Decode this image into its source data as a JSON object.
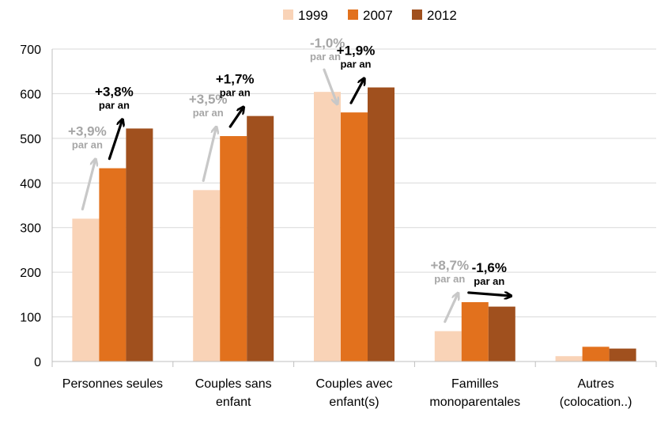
{
  "chart_data": {
    "type": "bar",
    "categories": [
      [
        "Personnes seules"
      ],
      [
        "Couples sans",
        "enfant"
      ],
      [
        "Couples avec",
        "enfant(s)"
      ],
      [
        "Familles",
        "monoparentales"
      ],
      [
        "Autres",
        "(colocation..)"
      ]
    ],
    "series": [
      {
        "name": "1999",
        "color": "#f9d3b7",
        "values": [
          320,
          384,
          604,
          68,
          12
        ]
      },
      {
        "name": "2007",
        "color": "#e2711d",
        "values": [
          433,
          505,
          558,
          133,
          33
        ]
      },
      {
        "name": "2012",
        "color": "#a0501e",
        "values": [
          522,
          550,
          614,
          123,
          29
        ]
      }
    ],
    "ylim": [
      0,
      700
    ],
    "yticks": [
      "0",
      "100",
      "200",
      "300",
      "400",
      "500",
      "600",
      "700"
    ],
    "grid": true,
    "legend_position": "top",
    "annotations": [
      {
        "category": 0,
        "period": "1999-2007",
        "rate": "+3,9%",
        "unit": "par an",
        "color": "#a6a6a6"
      },
      {
        "category": 0,
        "period": "2007-2012",
        "rate": "+3,8%",
        "unit": "par an",
        "color": "#000000"
      },
      {
        "category": 1,
        "period": "1999-2007",
        "rate": "+3,5%",
        "unit": "par an",
        "color": "#a6a6a6"
      },
      {
        "category": 1,
        "period": "2007-2012",
        "rate": "+1,7%",
        "unit": "par an",
        "color": "#000000"
      },
      {
        "category": 2,
        "period": "1999-2007",
        "rate": "-1,0%",
        "unit": "par an",
        "color": "#a6a6a6"
      },
      {
        "category": 2,
        "period": "2007-2012",
        "rate": "+1,9%",
        "unit": "par an",
        "color": "#000000"
      },
      {
        "category": 3,
        "period": "1999-2007",
        "rate": "+8,7%",
        "unit": "par an",
        "color": "#a6a6a6"
      },
      {
        "category": 3,
        "period": "2007-2012",
        "rate": "-1,6%",
        "unit": "par an",
        "color": "#000000"
      }
    ]
  }
}
